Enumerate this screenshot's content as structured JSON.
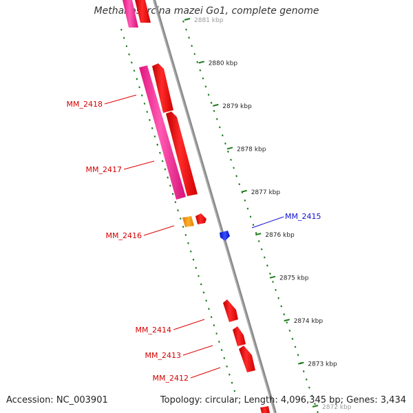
{
  "title": "Methanosarcina mazei Go1, complete genome",
  "footer": {
    "accession": "Accession: NC_003901",
    "stats": "Topology: circular; Length: 4,096,345 bp; Genes: 3,434"
  },
  "ruler_ticks": [
    {
      "label": "2881 kbp"
    },
    {
      "label": "2880 kbp"
    },
    {
      "label": "2879 kbp"
    },
    {
      "label": "2878 kbp"
    },
    {
      "label": "2877 kbp"
    },
    {
      "label": "2876 kbp"
    },
    {
      "label": "2875 kbp"
    },
    {
      "label": "2874 kbp"
    },
    {
      "label": "2873 kbp"
    },
    {
      "label": "2872 kbp"
    }
  ],
  "gene_labels": [
    {
      "name": "MM_2418",
      "color": "#d40000"
    },
    {
      "name": "MM_2417",
      "color": "#d40000"
    },
    {
      "name": "MM_2416",
      "color": "#d40000"
    },
    {
      "name": "MM_2415",
      "color": "#1010d0"
    },
    {
      "name": "MM_2414",
      "color": "#d40000"
    },
    {
      "name": "MM_2413",
      "color": "#d40000"
    },
    {
      "name": "MM_2412",
      "color": "#d40000"
    }
  ],
  "colors": {
    "backbone": "#8c8c8c",
    "ruler": "#1a7a1a",
    "gene_red": "#ff1010",
    "gene_pink": "#ff2f9a",
    "gene_orange": "#ff9a10",
    "gene_blue": "#1a2aff"
  }
}
